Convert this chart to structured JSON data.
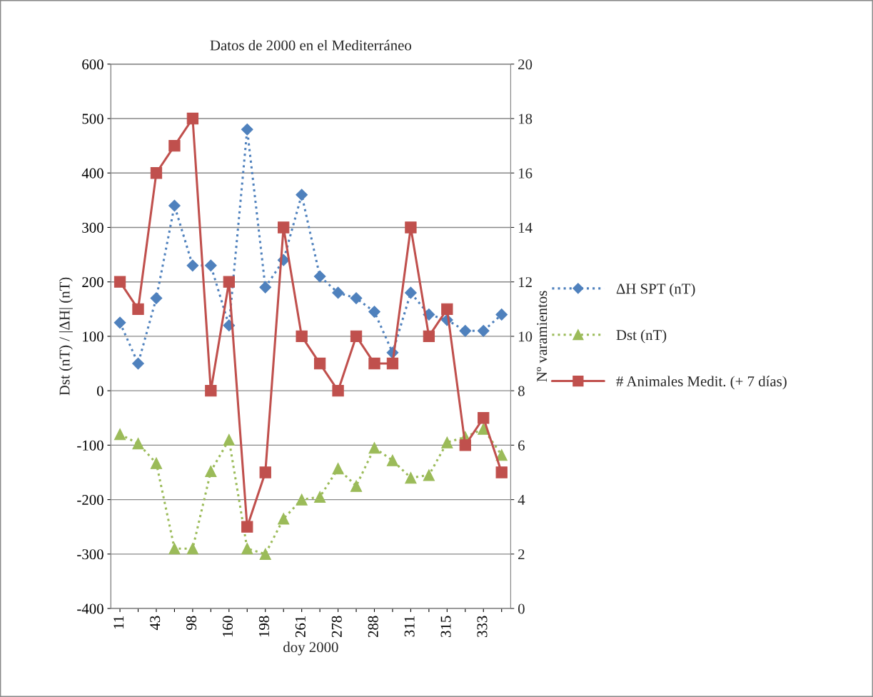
{
  "chart_data": {
    "type": "line",
    "title": "Datos de 2000 en el Mediterráneo",
    "xlabel": "doy 2000",
    "ylabel": "Dst (nT) / |ΔH| (nT)",
    "y2label": "Nº varamientos",
    "categories": [
      "11",
      null,
      "43",
      null,
      "98",
      null,
      "160",
      null,
      "198",
      null,
      "261",
      null,
      "278",
      null,
      "288",
      null,
      "311",
      null,
      "315",
      null,
      "333",
      null
    ],
    "series": [
      {
        "name": "ΔH SPT (nT)",
        "color": "#4f81bd",
        "marker": "diamond",
        "line_style": "dotted",
        "values": [
          125,
          50,
          170,
          340,
          230,
          230,
          120,
          480,
          190,
          240,
          360,
          210,
          180,
          170,
          145,
          70,
          180,
          140,
          130,
          110,
          110,
          140
        ]
      },
      {
        "name": "Dst (nT)",
        "color": "#9bbb59",
        "marker": "triangle",
        "line_style": "dotted",
        "values": [
          -80,
          -97,
          -133,
          -290,
          -290,
          -148,
          -90,
          -290,
          -300,
          -235,
          -200,
          -195,
          -143,
          -175,
          -105,
          -128,
          -160,
          -155,
          -95,
          -85,
          -70,
          -118
        ]
      },
      {
        "name": "# Animales Medit. (+ 7 días)",
        "axis": "y2",
        "color": "#c0504d",
        "marker": "square",
        "line_style": "solid",
        "values": [
          12,
          11,
          16,
          17,
          18,
          8,
          12,
          3,
          5,
          14,
          10,
          9,
          8,
          10,
          9,
          9,
          14,
          10,
          11,
          6,
          7,
          5
        ]
      }
    ],
    "ylim": [
      -400,
      600
    ],
    "yticks": [
      -400,
      -300,
      -200,
      -100,
      0,
      100,
      200,
      300,
      400,
      500,
      600
    ],
    "y2lim": [
      0,
      20
    ],
    "y2ticks": [
      0,
      2,
      4,
      6,
      8,
      10,
      12,
      14,
      16,
      18,
      20
    ],
    "grid": "y",
    "legend": "right"
  }
}
